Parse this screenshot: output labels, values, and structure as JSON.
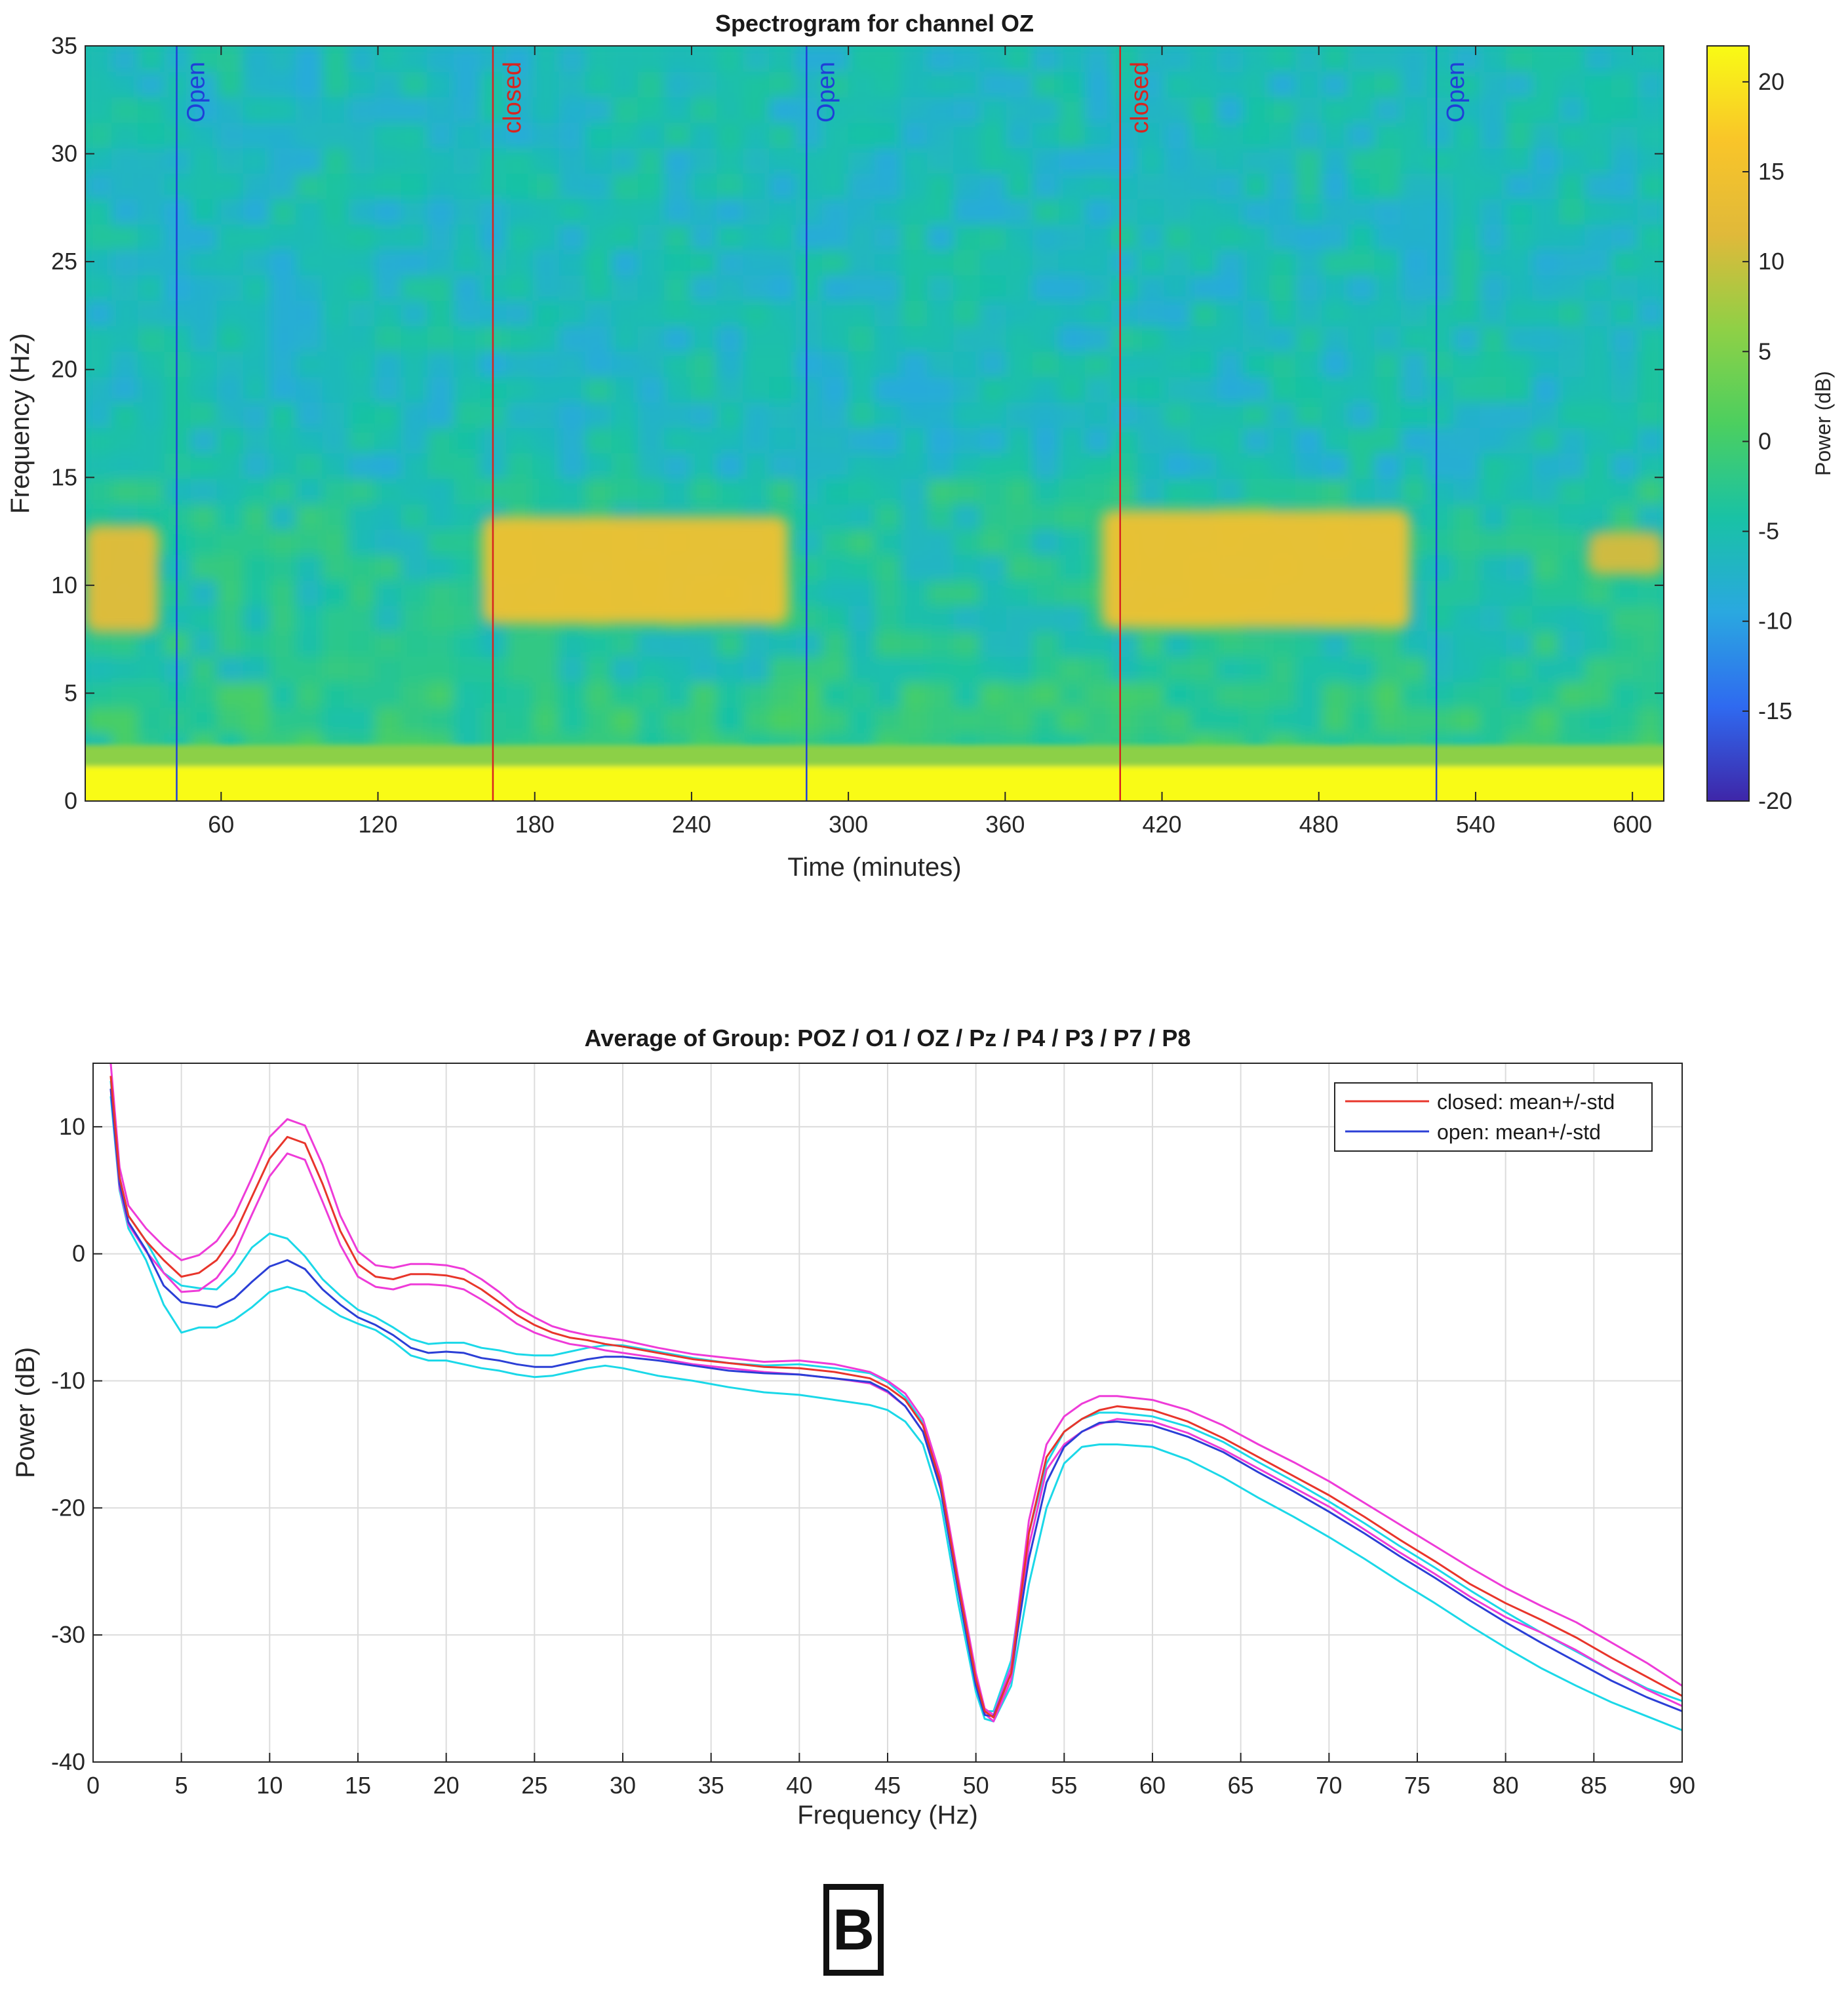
{
  "panel_label": "B",
  "chart_data": [
    {
      "type": "heatmap",
      "title": "Spectrogram for channel OZ",
      "xlabel": "Time (minutes)",
      "ylabel": "Frequency (Hz)",
      "xlim": [
        8,
        612
      ],
      "ylim": [
        0,
        35
      ],
      "x_ticks": [
        60,
        120,
        180,
        240,
        300,
        360,
        420,
        480,
        540,
        600
      ],
      "y_ticks": [
        0,
        5,
        10,
        15,
        20,
        25,
        30,
        35
      ],
      "colorbar": {
        "label": "Power (dB)",
        "range": [
          -20,
          22
        ],
        "ticks": [
          20,
          15,
          10,
          5,
          0,
          -5,
          -10,
          -15,
          -20
        ]
      },
      "colormap": [
        "#3e26a8",
        "#2f6af0",
        "#2aa8e0",
        "#19c2a5",
        "#4ccf5f",
        "#8fd046",
        "#e0b93a",
        "#f9c529",
        "#f9fb15"
      ],
      "background_db": -5,
      "low_freq_db": 22,
      "events": [
        {
          "time": 43,
          "label": "Open",
          "color": "#1f3fd8"
        },
        {
          "time": 164,
          "label": "closed",
          "color": "#d8241f"
        },
        {
          "time": 284,
          "label": "Open",
          "color": "#1f3fd8"
        },
        {
          "time": 404,
          "label": "closed",
          "color": "#d8241f"
        },
        {
          "time": 525,
          "label": "Open",
          "color": "#1f3fd8"
        }
      ],
      "alpha_bands": [
        {
          "t_start": 8,
          "t_end": 36,
          "f_low": 7.8,
          "f_high": 12.8,
          "db": 13
        },
        {
          "t_start": 160,
          "t_end": 277,
          "f_low": 8.2,
          "f_high": 13.2,
          "db": 15
        },
        {
          "t_start": 397,
          "t_end": 515,
          "f_low": 8.0,
          "f_high": 13.5,
          "db": 15
        },
        {
          "t_start": 583,
          "t_end": 612,
          "f_low": 10.5,
          "f_high": 12.5,
          "db": 11
        }
      ]
    },
    {
      "type": "line",
      "title": "Average of Group:  POZ / O1 / OZ / Pz / P4 / P3 / P7 / P8",
      "xlabel": "Frequency (Hz)",
      "ylabel": "Power (dB)",
      "xlim": [
        0,
        90
      ],
      "ylim": [
        -40,
        15
      ],
      "grid": true,
      "x_ticks": [
        0,
        5,
        10,
        15,
        20,
        25,
        30,
        35,
        40,
        45,
        50,
        55,
        60,
        65,
        70,
        75,
        80,
        85,
        90
      ],
      "y_ticks": [
        10,
        0,
        -10,
        -20,
        -30,
        -40
      ],
      "x": [
        1,
        1.5,
        2,
        3,
        4,
        5,
        6,
        7,
        8,
        9,
        10,
        11,
        12,
        13,
        14,
        15,
        16,
        17,
        18,
        19,
        20,
        21,
        22,
        23,
        24,
        25,
        26,
        27,
        28,
        29,
        30,
        32,
        34,
        36,
        38,
        40,
        42,
        44,
        45,
        46,
        47,
        48,
        49,
        50,
        50.5,
        51,
        52,
        53,
        54,
        55,
        56,
        57,
        58,
        60,
        62,
        64,
        66,
        68,
        70,
        72,
        74,
        76,
        78,
        80,
        82,
        84,
        86,
        88,
        90
      ],
      "legend_position": "top-right",
      "series": [
        {
          "name": "closed: mean+/-std",
          "legend": true,
          "color": "#e8352b",
          "values": [
            14,
            6,
            3,
            1,
            -0.5,
            -1.8,
            -1.5,
            -0.5,
            1.5,
            4.5,
            7.5,
            9.2,
            8.7,
            5.5,
            1.8,
            -0.8,
            -1.8,
            -2.0,
            -1.6,
            -1.6,
            -1.7,
            -2.0,
            -2.8,
            -3.8,
            -4.8,
            -5.6,
            -6.2,
            -6.6,
            -6.8,
            -7.1,
            -7.3,
            -7.8,
            -8.3,
            -8.6,
            -8.9,
            -9.0,
            -9.3,
            -9.8,
            -10.5,
            -11.5,
            -13.5,
            -18,
            -26,
            -33.5,
            -36,
            -36.5,
            -33,
            -22,
            -16,
            -14,
            -13,
            -12.3,
            -12.0,
            -12.3,
            -13.2,
            -14.5,
            -16.0,
            -17.5,
            -19.0,
            -20.7,
            -22.5,
            -24.2,
            -26.0,
            -27.5,
            -28.8,
            -30.2,
            -31.8,
            -33.3,
            -34.8
          ]
        },
        {
          "name": "closed: mean+std",
          "legend": false,
          "color": "#ee3bd8",
          "values": [
            15,
            6.8,
            3.8,
            2,
            0.6,
            -0.5,
            -0.1,
            1.0,
            3.0,
            6.0,
            9.2,
            10.6,
            10.1,
            7.0,
            3.0,
            0.2,
            -0.9,
            -1.1,
            -0.8,
            -0.8,
            -0.9,
            -1.2,
            -2.0,
            -3.0,
            -4.2,
            -5.0,
            -5.7,
            -6.1,
            -6.4,
            -6.6,
            -6.8,
            -7.4,
            -7.9,
            -8.2,
            -8.5,
            -8.4,
            -8.7,
            -9.3,
            -10.0,
            -11.0,
            -13.0,
            -17.5,
            -25.5,
            -33,
            -35.8,
            -36.3,
            -32.5,
            -21,
            -15,
            -12.8,
            -11.8,
            -11.2,
            -11.2,
            -11.5,
            -12.3,
            -13.5,
            -15.0,
            -16.4,
            -17.9,
            -19.6,
            -21.3,
            -23.0,
            -24.7,
            -26.3,
            -27.7,
            -29.0,
            -30.6,
            -32.2,
            -34.0
          ]
        },
        {
          "name": "closed: mean-std",
          "legend": false,
          "color": "#ee3bd8",
          "values": [
            13,
            5.2,
            2.3,
            0.2,
            -1.5,
            -3.0,
            -2.9,
            -1.9,
            0,
            3.1,
            6.1,
            7.9,
            7.4,
            4.1,
            0.7,
            -1.8,
            -2.6,
            -2.8,
            -2.4,
            -2.4,
            -2.5,
            -2.8,
            -3.6,
            -4.5,
            -5.5,
            -6.2,
            -6.7,
            -7.1,
            -7.3,
            -7.6,
            -7.8,
            -8.2,
            -8.7,
            -9.0,
            -9.3,
            -9.5,
            -9.8,
            -10.2,
            -10.9,
            -12.0,
            -14.0,
            -18.5,
            -26.5,
            -34,
            -36.2,
            -36.8,
            -33.5,
            -23,
            -17,
            -15,
            -14,
            -13.4,
            -13.0,
            -13.2,
            -14.1,
            -15.4,
            -16.9,
            -18.4,
            -19.9,
            -21.7,
            -23.5,
            -25.2,
            -27.0,
            -28.6,
            -29.8,
            -31.2,
            -32.8,
            -34.3,
            -35.6
          ]
        },
        {
          "name": "open: mean+/-std",
          "legend": true,
          "color": "#2b3fd6",
          "values": [
            13,
            5.5,
            2.5,
            0.3,
            -2.5,
            -3.8,
            -4.0,
            -4.2,
            -3.5,
            -2.2,
            -1.0,
            -0.5,
            -1.2,
            -2.8,
            -4.0,
            -5.0,
            -5.6,
            -6.4,
            -7.4,
            -7.8,
            -7.7,
            -7.8,
            -8.2,
            -8.4,
            -8.7,
            -8.9,
            -8.9,
            -8.6,
            -8.3,
            -8.1,
            -8.1,
            -8.4,
            -8.8,
            -9.2,
            -9.4,
            -9.5,
            -9.8,
            -10.1,
            -10.8,
            -12.0,
            -14.0,
            -18.5,
            -26.5,
            -34,
            -36.3,
            -36.4,
            -33,
            -24,
            -18,
            -15.2,
            -14,
            -13.3,
            -13.2,
            -13.5,
            -14.4,
            -15.6,
            -17.2,
            -18.7,
            -20.3,
            -22.0,
            -23.8,
            -25.5,
            -27.3,
            -29.0,
            -30.6,
            -32.1,
            -33.6,
            -34.9,
            -36.0
          ]
        },
        {
          "name": "open: mean+std",
          "legend": false,
          "color": "#1bd8e8",
          "values": [
            13.6,
            6,
            3,
            1.0,
            -1.5,
            -2.5,
            -2.7,
            -2.8,
            -1.5,
            0.5,
            1.6,
            1.2,
            -0.2,
            -2.0,
            -3.3,
            -4.4,
            -5.0,
            -5.8,
            -6.7,
            -7.1,
            -7.0,
            -7.0,
            -7.4,
            -7.6,
            -7.9,
            -8.0,
            -8.0,
            -7.7,
            -7.4,
            -7.2,
            -7.2,
            -7.7,
            -8.2,
            -8.6,
            -8.8,
            -8.7,
            -9.0,
            -9.4,
            -10.1,
            -11.3,
            -13.3,
            -18,
            -26,
            -33.5,
            -36,
            -36,
            -32,
            -22,
            -16.5,
            -14,
            -13,
            -12.5,
            -12.5,
            -12.8,
            -13.6,
            -14.8,
            -16.4,
            -17.9,
            -19.5,
            -21.2,
            -23.0,
            -24.7,
            -26.5,
            -28.2,
            -29.8,
            -31.3,
            -32.8,
            -34.2,
            -35.2
          ]
        },
        {
          "name": "open: mean-std",
          "legend": false,
          "color": "#1bd8e8",
          "values": [
            12.4,
            5,
            2.0,
            -0.5,
            -4.0,
            -6.2,
            -5.8,
            -5.8,
            -5.2,
            -4.2,
            -3.0,
            -2.6,
            -3.0,
            -4.0,
            -4.9,
            -5.5,
            -6.0,
            -6.9,
            -8.0,
            -8.4,
            -8.4,
            -8.7,
            -9.0,
            -9.2,
            -9.5,
            -9.7,
            -9.6,
            -9.3,
            -9.0,
            -8.8,
            -9.0,
            -9.6,
            -10.0,
            -10.5,
            -10.9,
            -11.1,
            -11.5,
            -11.9,
            -12.3,
            -13.2,
            -15.0,
            -19.5,
            -27.5,
            -34.5,
            -36.6,
            -36.8,
            -34,
            -26,
            -20,
            -16.5,
            -15.2,
            -15,
            -15.0,
            -15.2,
            -16.2,
            -17.6,
            -19.2,
            -20.7,
            -22.3,
            -24.0,
            -25.8,
            -27.5,
            -29.3,
            -31.0,
            -32.6,
            -34.0,
            -35.3,
            -36.4,
            -37.5
          ]
        }
      ]
    }
  ]
}
